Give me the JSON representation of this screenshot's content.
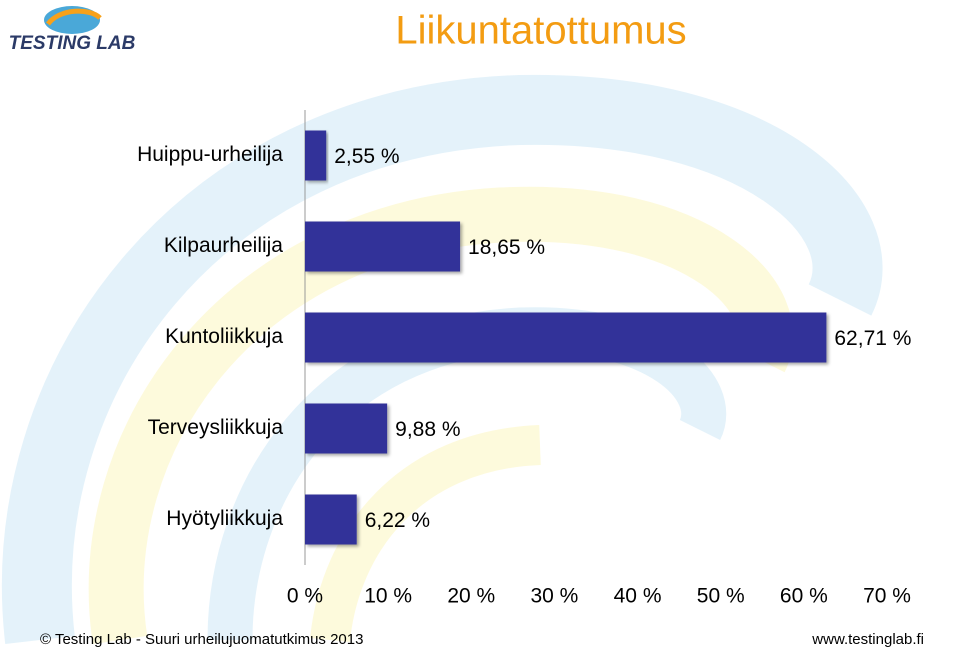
{
  "logo_text": "TESTING LAB",
  "footer_left": "© Testing Lab -  Suuri urheilujuomatutkimus 2013",
  "footer_right": "www.testinglab.fi",
  "chart_data": {
    "type": "barh",
    "title": "Liikuntatottumus",
    "categories": [
      "Huippu-urheilija",
      "Kilpaurheilija",
      "Kuntoliikkuja",
      "Terveysliikkuja",
      "Hyötyliikkuja"
    ],
    "values": [
      2.55,
      18.65,
      62.71,
      9.88,
      6.22
    ],
    "value_labels": [
      "2,55 %",
      "18,65 %",
      "62,71 %",
      "9,88 %",
      "6,22 %"
    ],
    "color": "#333399",
    "xlim": [
      0,
      70
    ],
    "xticks": [
      {
        "value": 0,
        "label": "0 %"
      },
      {
        "value": 10,
        "label": "10 %"
      },
      {
        "value": 20,
        "label": "20 %"
      },
      {
        "value": 30,
        "label": "30 %"
      },
      {
        "value": 40,
        "label": "40 %"
      },
      {
        "value": 50,
        "label": "50 %"
      },
      {
        "value": 60,
        "label": "60 %"
      },
      {
        "value": 70,
        "label": "70 %"
      }
    ],
    "grid": false
  }
}
